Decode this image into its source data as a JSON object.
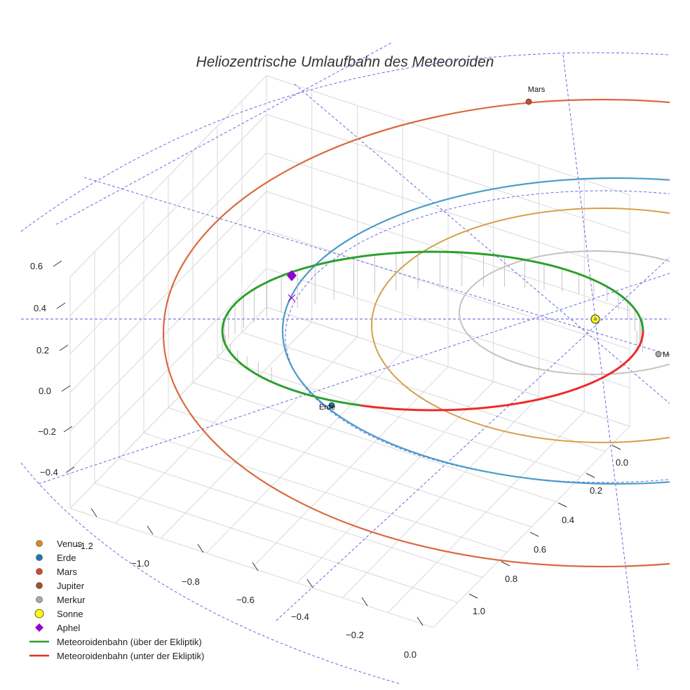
{
  "chart_data": {
    "type": "3d-line",
    "title": "Heliozentrische Umlaufbahn des Meteoroiden",
    "x_axis": {
      "ticks": [
        "−1.2",
        "−1.0",
        "−0.8",
        "−0.6",
        "−0.4",
        "−0.2",
        "0.0"
      ]
    },
    "y_axis": {
      "ticks": [
        "0.0",
        "0.2",
        "0.4",
        "0.6",
        "0.8",
        "1.0"
      ]
    },
    "z_axis": {
      "ticks": [
        "0.6",
        "0.4",
        "0.2",
        "0.0",
        "−0.2",
        "−0.4"
      ]
    },
    "orbits": [
      {
        "name": "Mars",
        "color": "#d9693f",
        "semi_major_au": 1.524
      },
      {
        "name": "Erde",
        "color": "#4a9cc8",
        "semi_major_au": 1.0
      },
      {
        "name": "Venus",
        "color": "#d4a04a",
        "semi_major_au": 0.723
      },
      {
        "name": "Merkur",
        "color": "#c8c0bd",
        "semi_major_au": 0.387
      }
    ],
    "point_labels": [
      {
        "name": "Mars",
        "color": "#d24a2a"
      },
      {
        "name": "Erde",
        "color": "#1f77b4"
      },
      {
        "name": "Merkur",
        "color": "#b0a6a2"
      }
    ],
    "meteoroid": {
      "above_color": "#2ca02c",
      "below_color": "#ee2a2a",
      "aphel_color": "#9400d3"
    },
    "legend": [
      {
        "label": "Venus",
        "kind": "dot",
        "color": "#d98a1e"
      },
      {
        "label": "Erde",
        "kind": "dot",
        "color": "#1f77b4"
      },
      {
        "label": "Mars",
        "kind": "dot",
        "color": "#d24a2a"
      },
      {
        "label": "Jupiter",
        "kind": "dot",
        "color": "#a0522d"
      },
      {
        "label": "Merkur",
        "kind": "dot",
        "color": "#b0a6a2"
      },
      {
        "label": "Sonne",
        "kind": "dot-big",
        "color": "#ffff00"
      },
      {
        "label": "Aphel",
        "kind": "diamond",
        "color": "#9400d3"
      },
      {
        "label": "Meteoroidenbahn (über der Ekliptik)",
        "kind": "line",
        "color": "#2ca02c"
      },
      {
        "label": "Meteoroidenbahn (unter der Ekliptik)",
        "kind": "line",
        "color": "#ee2a2a"
      }
    ]
  }
}
